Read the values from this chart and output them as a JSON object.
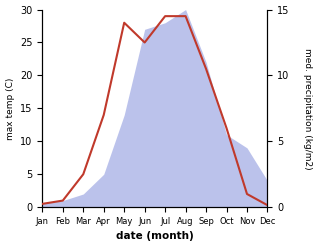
{
  "months": [
    "Jan",
    "Feb",
    "Mar",
    "Apr",
    "May",
    "Jun",
    "Jul",
    "Aug",
    "Sep",
    "Oct",
    "Nov",
    "Dec"
  ],
  "temperature": [
    0.5,
    1.0,
    5.0,
    14.0,
    28.0,
    25.0,
    29.0,
    29.0,
    21.0,
    12.0,
    2.0,
    0.3
  ],
  "precipitation": [
    0.3,
    0.5,
    1.0,
    2.5,
    7.0,
    13.5,
    14.0,
    15.0,
    11.0,
    5.5,
    4.5,
    2.0
  ],
  "temp_color": "#c0392b",
  "precip_color": "#b0b8e8",
  "temp_ylim": [
    0,
    30
  ],
  "precip_ylim": [
    0,
    15
  ],
  "temp_yticks": [
    0,
    5,
    10,
    15,
    20,
    25,
    30
  ],
  "precip_yticks": [
    0,
    5,
    10,
    15
  ],
  "ylabel_left": "max temp (C)",
  "ylabel_right": "med. precipitation (kg/m2)",
  "xlabel": "date (month)",
  "fig_width": 3.18,
  "fig_height": 2.47,
  "dpi": 100
}
